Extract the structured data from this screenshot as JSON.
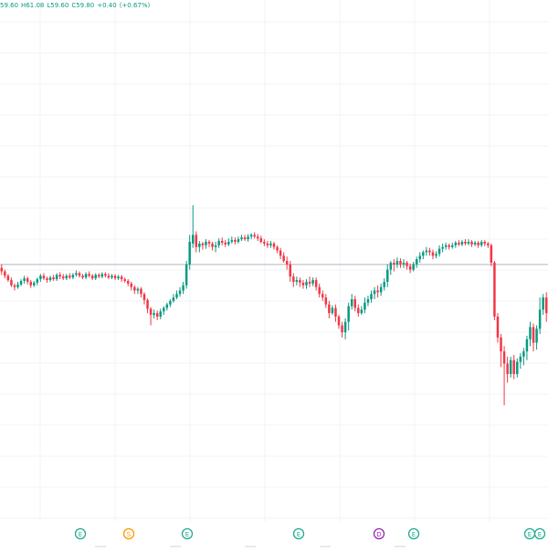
{
  "legend": {
    "open": "59.60",
    "high_label": "H",
    "high": "61.08",
    "low_label": "L",
    "low": "59.60",
    "close_label": "C",
    "close": "59.80",
    "change": "+0.40",
    "change_pct": "(+0.67%)"
  },
  "colors": {
    "up": "#089981",
    "down": "#f23645",
    "ref_line": "#b2b5be",
    "grid": "#f0f3fa",
    "background": "#ffffff"
  },
  "event_markers": [
    {
      "letter": "E",
      "color": "#22ab94"
    },
    {
      "letter": "S",
      "color": "#ff9800"
    },
    {
      "letter": "E",
      "color": "#22ab94"
    },
    {
      "letter": "E",
      "color": "#22ab94"
    },
    {
      "letter": "D",
      "color": "#9c27b0"
    },
    {
      "letter": "E",
      "color": "#22ab94"
    },
    {
      "letter": "E",
      "color": "#22ab94"
    },
    {
      "letter": "E",
      "color": "#22ab94"
    }
  ],
  "chart_data": {
    "type": "candlestick",
    "series": [
      {
        "candles": [
          [
            292,
            288,
            284,
            296
          ],
          [
            288,
            283,
            280,
            290
          ],
          [
            283,
            278,
            276,
            285
          ],
          [
            278,
            272,
            270,
            281
          ],
          [
            272,
            270,
            266,
            274
          ],
          [
            270,
            273,
            268,
            276
          ],
          [
            273,
            277,
            271,
            279
          ],
          [
            277,
            280,
            274,
            283
          ],
          [
            280,
            276,
            273,
            282
          ],
          [
            276,
            272,
            269,
            278
          ],
          [
            272,
            275,
            270,
            277
          ],
          [
            275,
            279,
            272,
            281
          ],
          [
            279,
            283,
            276,
            285
          ],
          [
            283,
            280,
            278,
            286
          ],
          [
            280,
            278,
            275,
            282
          ],
          [
            278,
            281,
            276,
            283
          ],
          [
            281,
            279,
            277,
            284
          ],
          [
            279,
            284,
            277,
            286
          ],
          [
            284,
            282,
            279,
            287
          ],
          [
            282,
            280,
            278,
            285
          ],
          [
            280,
            283,
            278,
            285
          ],
          [
            283,
            281,
            279,
            286
          ],
          [
            281,
            284,
            279,
            286
          ],
          [
            284,
            286,
            282,
            289
          ],
          [
            286,
            283,
            281,
            288
          ],
          [
            283,
            281,
            279,
            285
          ],
          [
            281,
            285,
            279,
            287
          ],
          [
            285,
            283,
            281,
            288
          ],
          [
            283,
            280,
            278,
            285
          ],
          [
            280,
            284,
            278,
            286
          ],
          [
            284,
            282,
            280,
            286
          ],
          [
            282,
            285,
            280,
            287
          ],
          [
            285,
            283,
            281,
            287
          ],
          [
            283,
            281,
            279,
            286
          ],
          [
            281,
            283,
            279,
            285
          ],
          [
            283,
            280,
            278,
            285
          ],
          [
            280,
            282,
            278,
            284
          ],
          [
            282,
            279,
            276,
            284
          ],
          [
            279,
            277,
            275,
            281
          ],
          [
            277,
            274,
            271,
            279
          ],
          [
            274,
            270,
            266,
            276
          ],
          [
            270,
            266,
            262,
            272
          ],
          [
            266,
            268,
            262,
            270
          ],
          [
            268,
            262,
            258,
            270
          ],
          [
            262,
            255,
            250,
            264
          ],
          [
            255,
            245,
            240,
            257
          ],
          [
            245,
            238,
            226,
            247
          ],
          [
            238,
            240,
            234,
            244
          ],
          [
            240,
            236,
            232,
            243
          ],
          [
            236,
            242,
            233,
            245
          ],
          [
            242,
            246,
            238,
            248
          ],
          [
            246,
            250,
            243,
            252
          ],
          [
            250,
            254,
            247,
            256
          ],
          [
            254,
            258,
            252,
            262
          ],
          [
            258,
            262,
            256,
            266
          ],
          [
            262,
            266,
            259,
            270
          ],
          [
            266,
            272,
            262,
            276
          ],
          [
            272,
            296,
            268,
            300
          ],
          [
            296,
            322,
            290,
            330
          ],
          [
            320,
            330,
            315,
            364
          ],
          [
            330,
            316,
            310,
            334
          ],
          [
            316,
            320,
            310,
            323
          ],
          [
            320,
            318,
            313,
            322
          ],
          [
            318,
            322,
            314,
            325
          ],
          [
            322,
            320,
            316,
            324
          ],
          [
            320,
            316,
            312,
            322
          ],
          [
            316,
            318,
            310,
            322
          ],
          [
            318,
            323,
            315,
            326
          ],
          [
            323,
            321,
            318,
            327
          ],
          [
            321,
            319,
            316,
            324
          ],
          [
            319,
            322,
            317,
            326
          ],
          [
            322,
            324,
            320,
            328
          ],
          [
            324,
            322,
            319,
            327
          ],
          [
            322,
            325,
            320,
            328
          ],
          [
            325,
            327,
            323,
            330
          ],
          [
            327,
            325,
            323,
            330
          ],
          [
            325,
            328,
            322,
            331
          ],
          [
            328,
            330,
            325,
            332
          ],
          [
            330,
            328,
            326,
            333
          ],
          [
            328,
            326,
            323,
            331
          ],
          [
            326,
            322,
            320,
            329
          ],
          [
            322,
            320,
            317,
            325
          ],
          [
            320,
            318,
            315,
            323
          ],
          [
            318,
            320,
            315,
            323
          ],
          [
            320,
            316,
            313,
            322
          ],
          [
            316,
            312,
            309,
            318
          ],
          [
            312,
            306,
            302,
            315
          ],
          [
            306,
            300,
            298,
            310
          ],
          [
            300,
            296,
            290,
            305
          ],
          [
            296,
            282,
            276,
            300
          ],
          [
            282,
            276,
            270,
            286
          ],
          [
            276,
            278,
            272,
            282
          ],
          [
            278,
            275,
            270,
            281
          ],
          [
            275,
            272,
            268,
            278
          ],
          [
            272,
            276,
            268,
            279
          ],
          [
            276,
            274,
            270,
            282
          ],
          [
            274,
            278,
            271,
            281
          ],
          [
            278,
            270,
            266,
            281
          ],
          [
            270,
            262,
            258,
            274
          ],
          [
            262,
            258,
            254,
            266
          ],
          [
            258,
            250,
            246,
            262
          ],
          [
            250,
            240,
            234,
            254
          ],
          [
            240,
            246,
            238,
            249
          ],
          [
            246,
            236,
            230,
            250
          ],
          [
            236,
            226,
            222,
            238
          ],
          [
            226,
            218,
            212,
            230
          ],
          [
            218,
            230,
            210,
            234
          ],
          [
            230,
            248,
            220,
            252
          ],
          [
            248,
            256,
            244,
            262
          ],
          [
            256,
            246,
            242,
            260
          ],
          [
            246,
            240,
            236,
            250
          ],
          [
            240,
            244,
            238,
            248
          ],
          [
            244,
            252,
            240,
            258
          ],
          [
            252,
            256,
            248,
            260
          ],
          [
            256,
            262,
            252,
            266
          ],
          [
            262,
            266,
            256,
            270
          ],
          [
            266,
            264,
            258,
            272
          ],
          [
            264,
            270,
            260,
            274
          ],
          [
            270,
            276,
            266,
            280
          ],
          [
            276,
            290,
            270,
            296
          ],
          [
            290,
            298,
            284,
            300
          ],
          [
            298,
            296,
            288,
            302
          ],
          [
            296,
            300,
            292,
            304
          ],
          [
            300,
            296,
            292,
            303
          ],
          [
            296,
            298,
            292,
            302
          ],
          [
            298,
            294,
            290,
            300
          ],
          [
            294,
            290,
            286,
            297
          ],
          [
            290,
            296,
            288,
            299
          ],
          [
            296,
            302,
            292,
            305
          ],
          [
            302,
            306,
            298,
            310
          ],
          [
            306,
            310,
            302,
            312
          ],
          [
            310,
            312,
            306,
            316
          ],
          [
            312,
            310,
            306,
            315
          ],
          [
            310,
            306,
            302,
            313
          ],
          [
            306,
            308,
            303,
            311
          ],
          [
            308,
            314,
            305,
            318
          ],
          [
            314,
            316,
            310,
            320
          ],
          [
            316,
            318,
            313,
            321
          ],
          [
            318,
            316,
            313,
            320
          ],
          [
            316,
            318,
            314,
            321
          ],
          [
            318,
            321,
            315,
            323
          ],
          [
            321,
            319,
            317,
            324
          ],
          [
            319,
            322,
            317,
            324
          ],
          [
            322,
            320,
            318,
            325
          ],
          [
            320,
            322,
            318,
            325
          ],
          [
            322,
            319,
            316,
            324
          ],
          [
            319,
            321,
            317,
            323
          ],
          [
            321,
            318,
            315,
            323
          ],
          [
            318,
            322,
            316,
            324
          ],
          [
            322,
            320,
            317,
            324
          ],
          [
            320,
            318,
            315,
            322
          ],
          [
            318,
            298,
            294,
            320
          ],
          [
            298,
            236,
            232,
            300
          ],
          [
            236,
            212,
            206,
            240
          ],
          [
            212,
            196,
            178,
            216
          ],
          [
            196,
            182,
            134,
            202
          ],
          [
            182,
            170,
            160,
            190
          ],
          [
            170,
            186,
            166,
            190
          ],
          [
            186,
            170,
            164,
            192
          ],
          [
            170,
            184,
            166,
            188
          ],
          [
            184,
            190,
            176,
            194
          ],
          [
            190,
            196,
            180,
            200
          ],
          [
            196,
            210,
            186,
            214
          ],
          [
            210,
            224,
            202,
            230
          ],
          [
            224,
            206,
            196,
            228
          ],
          [
            206,
            222,
            198,
            226
          ],
          [
            222,
            244,
            216,
            258
          ],
          [
            244,
            258,
            238,
            262
          ],
          [
            258,
            240,
            230,
            264
          ]
        ]
      }
    ],
    "reference_line": 296,
    "ylim": [
      0,
      600
    ]
  }
}
